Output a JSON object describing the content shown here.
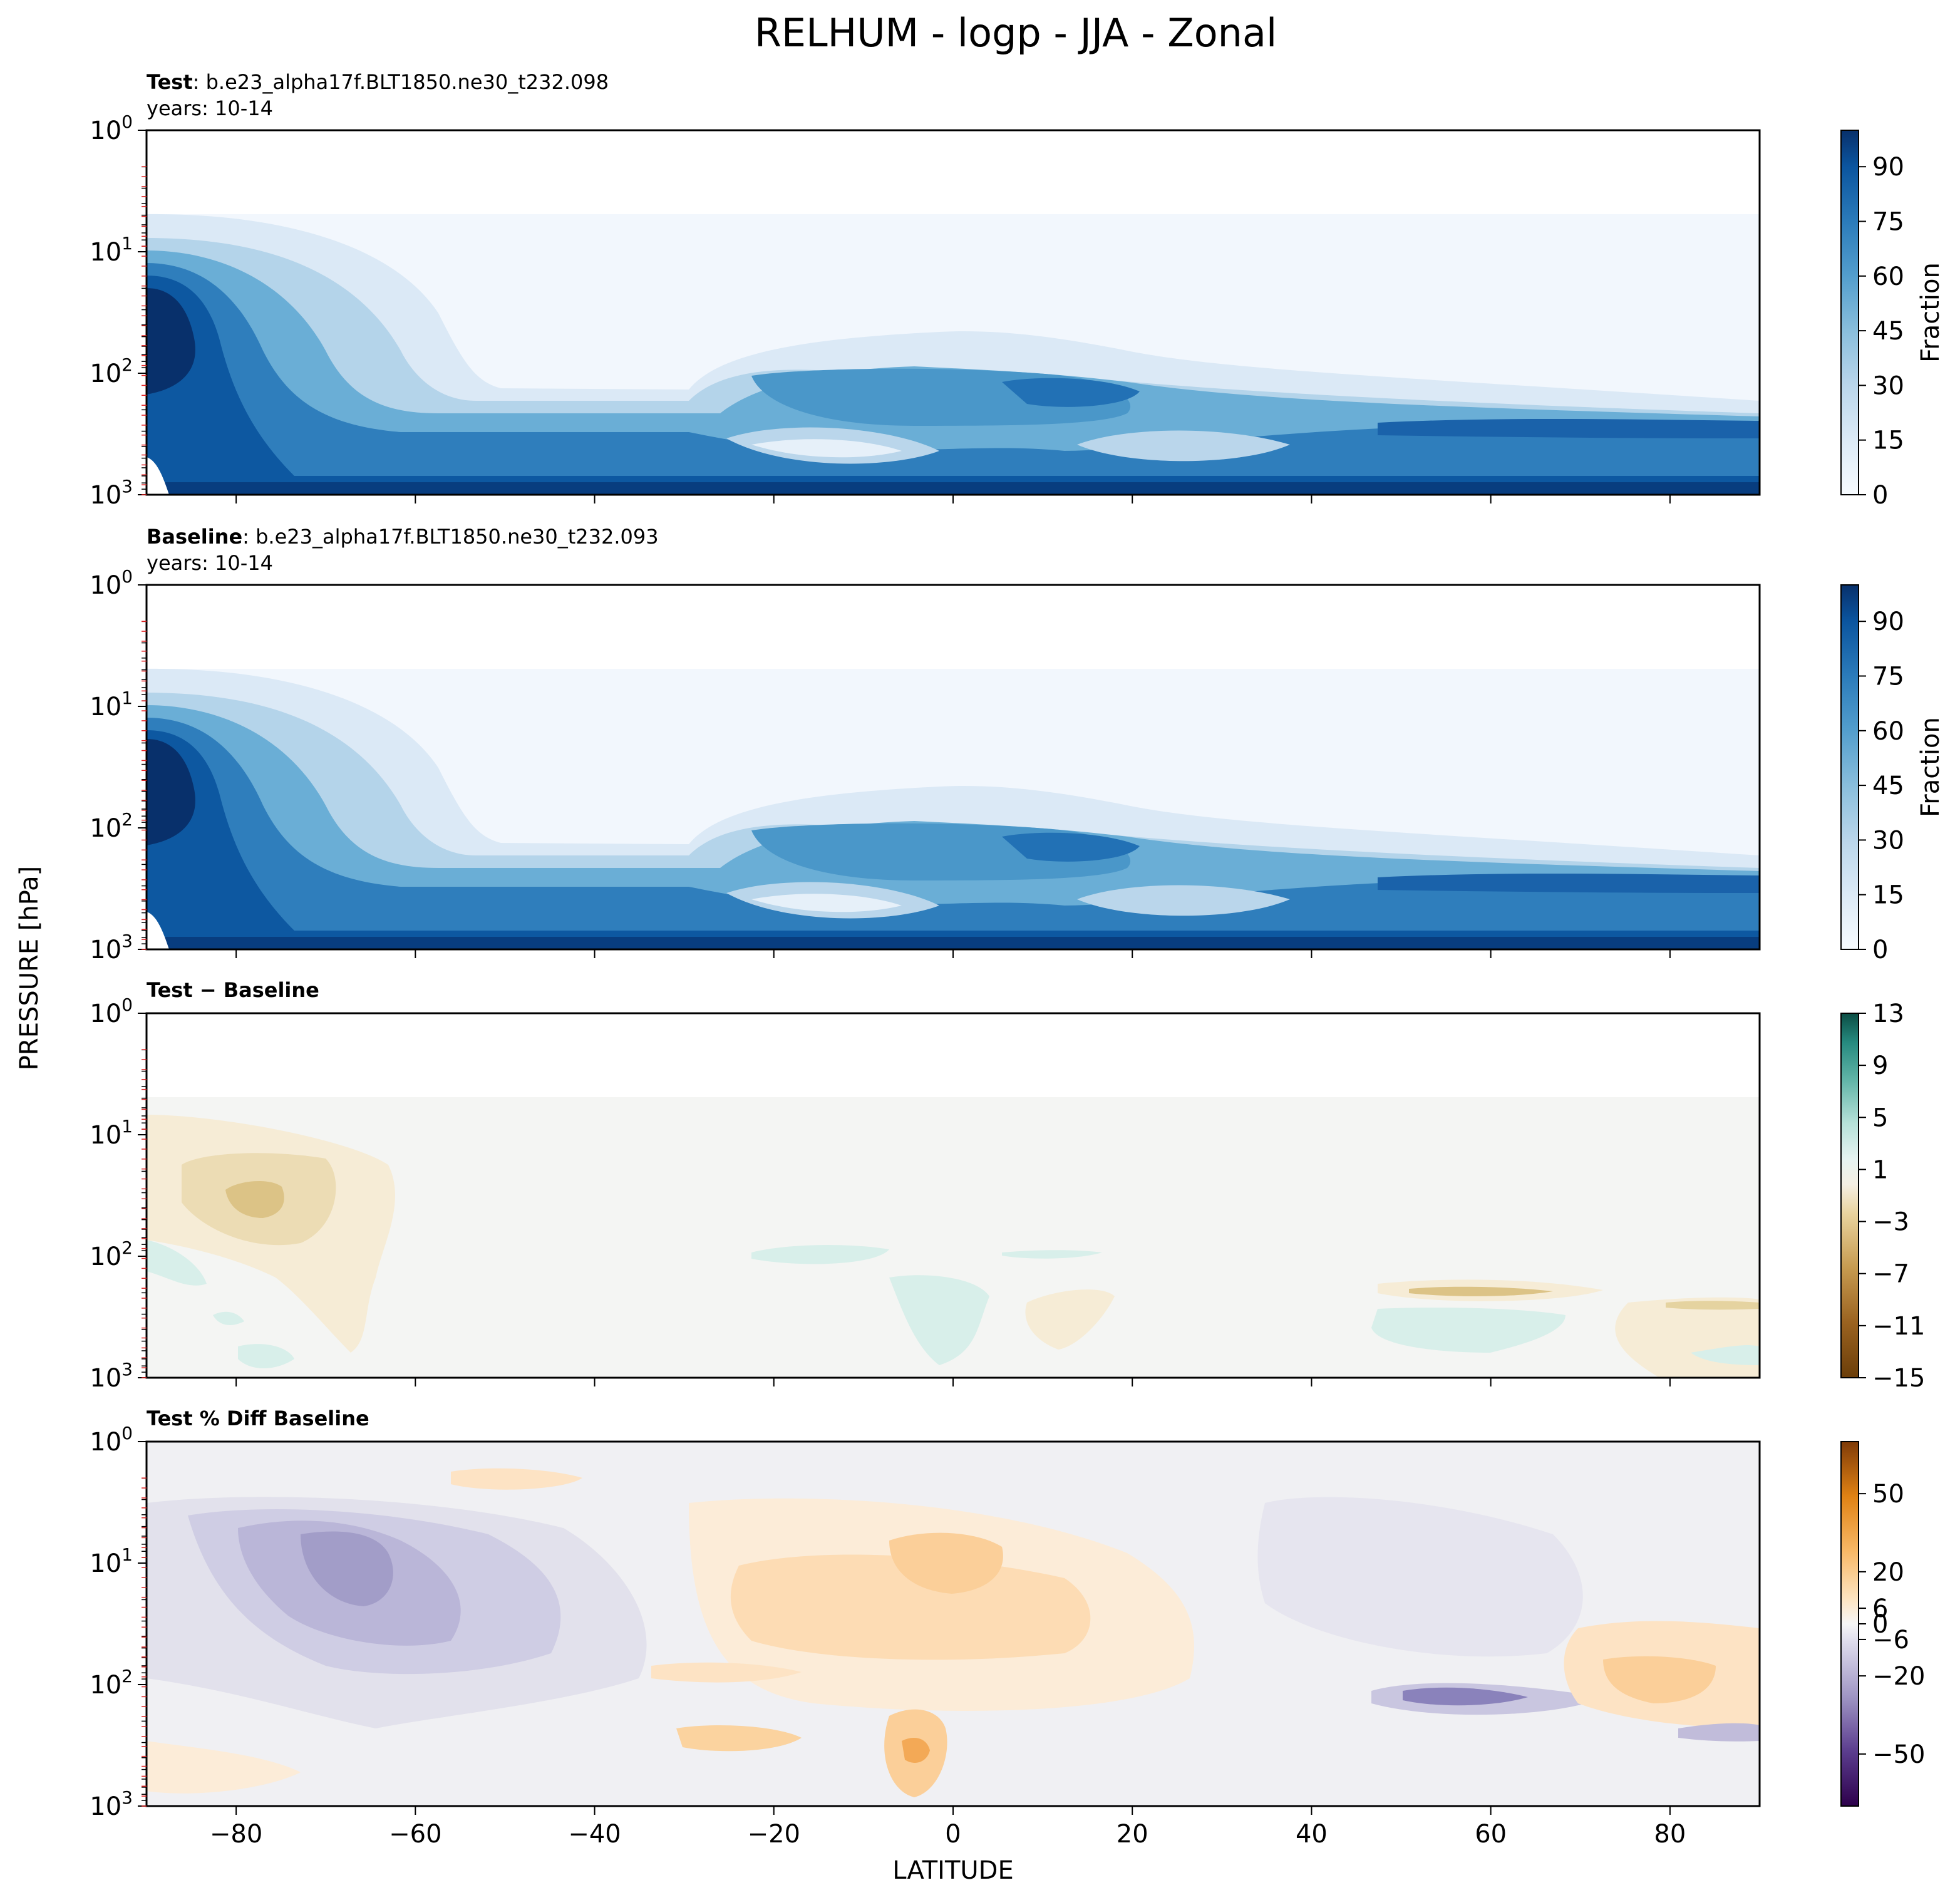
{
  "figure": {
    "title": "RELHUM - logp - JJA - Zonal",
    "ylabel": "PRESSURE [hPa]",
    "xlabel": "LATITUDE"
  },
  "chart_data": [
    {
      "type": "heatmap",
      "name": "test",
      "title_bold": "Test",
      "title_rest": ": b.e23_alpha17f.BLT1850.ne30_t232.098",
      "subtitle": "years: 10-14",
      "x_ticks": [
        -80,
        -60,
        -40,
        -20,
        0,
        20,
        40,
        60,
        80
      ],
      "show_x_tick_labels": false,
      "xlim": [
        -90,
        90
      ],
      "y_scale": "log",
      "ylim": [
        1000,
        1
      ],
      "y_ticks": [
        "10^0",
        "10^1",
        "10^2",
        "10^3"
      ],
      "colormap": "Blues",
      "colorbar": {
        "label": "Fraction",
        "ticks": [
          "0",
          "15",
          "30",
          "45",
          "60",
          "75",
          "90"
        ],
        "range": [
          0,
          100
        ],
        "values": [
          0,
          15,
          30,
          45,
          60,
          75,
          90
        ]
      },
      "field": {
        "x": [
          -90,
          -80,
          -60,
          -40,
          -20,
          0,
          20,
          40,
          60,
          80,
          90
        ],
        "p": [
          5,
          10,
          30,
          100,
          300,
          600,
          1000
        ]
      }
    },
    {
      "type": "heatmap",
      "name": "baseline",
      "title_bold": "Baseline",
      "title_rest": ": b.e23_alpha17f.BLT1850.ne30_t232.093",
      "subtitle": "years: 10-14",
      "x_ticks": [
        -80,
        -60,
        -40,
        -20,
        0,
        20,
        40,
        60,
        80
      ],
      "show_x_tick_labels": false,
      "xlim": [
        -90,
        90
      ],
      "y_scale": "log",
      "ylim": [
        1000,
        1
      ],
      "y_ticks": [
        "10^0",
        "10^1",
        "10^2",
        "10^3"
      ],
      "colormap": "Blues",
      "colorbar": {
        "label": "Fraction",
        "ticks": [
          "0",
          "15",
          "30",
          "45",
          "60",
          "75",
          "90"
        ],
        "range": [
          0,
          100
        ],
        "values": [
          0,
          15,
          30,
          45,
          60,
          75,
          90
        ]
      }
    },
    {
      "type": "heatmap",
      "name": "difference",
      "title_bold": "Test − Baseline",
      "x_ticks": [
        -80,
        -60,
        -40,
        -20,
        0,
        20,
        40,
        60,
        80
      ],
      "show_x_tick_labels": false,
      "xlim": [
        -90,
        90
      ],
      "y_scale": "log",
      "ylim": [
        1000,
        1
      ],
      "y_ticks": [
        "10^0",
        "10^1",
        "10^2",
        "10^3"
      ],
      "colormap": "BrBG",
      "colorbar": {
        "label": "",
        "ticks": [
          "−15",
          "−11",
          "−7",
          "−3",
          "1",
          "5",
          "9",
          "13"
        ],
        "range": [
          -15,
          13
        ],
        "values": [
          -15,
          -11,
          -7,
          -3,
          1,
          5,
          9,
          13
        ]
      }
    },
    {
      "type": "heatmap",
      "name": "percent_difference",
      "title_bold": "Test % Diff Baseline",
      "x_ticks": [
        -80,
        -60,
        -40,
        -20,
        0,
        20,
        40,
        60,
        80
      ],
      "x_tick_labels": [
        "−80",
        "−60",
        "−40",
        "−20",
        "0",
        "20",
        "40",
        "60",
        "80"
      ],
      "show_x_tick_labels": true,
      "xlim": [
        -90,
        90
      ],
      "y_scale": "log",
      "ylim": [
        1000,
        1
      ],
      "y_ticks": [
        "10^0",
        "10^1",
        "10^2",
        "10^3"
      ],
      "colormap": "PuOr_r",
      "colorbar": {
        "label": "",
        "ticks": [
          "−50",
          "−20",
          "−6",
          "0",
          "6",
          "20",
          "50"
        ],
        "range": [
          -70,
          70
        ],
        "values": [
          -50,
          -20,
          -6,
          0,
          6,
          20,
          50
        ]
      }
    }
  ]
}
